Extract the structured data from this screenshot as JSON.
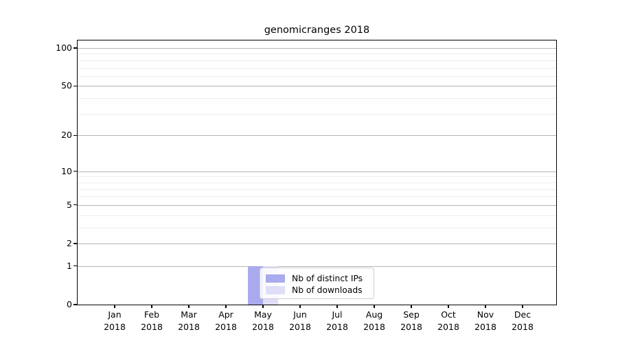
{
  "figure": {
    "title": "genomicranges 2018"
  },
  "chart_data": {
    "type": "bar",
    "title": "genomicranges 2018",
    "categories": [
      "Jan 2018",
      "Feb 2018",
      "Mar 2018",
      "Apr 2018",
      "May 2018",
      "Jun 2018",
      "Jul 2018",
      "Aug 2018",
      "Sep 2018",
      "Oct 2018",
      "Nov 2018",
      "Dec 2018"
    ],
    "series": [
      {
        "name": "Nb of distinct IPs",
        "color": "#aaaaee",
        "values": [
          0,
          0,
          0,
          0,
          1,
          0,
          0,
          0,
          0,
          0,
          0,
          0
        ]
      },
      {
        "name": "Nb of downloads",
        "color": "#dedef9",
        "values": [
          0,
          0,
          0,
          0,
          1,
          0,
          0,
          0,
          0,
          0,
          0,
          0
        ]
      }
    ],
    "yscale": "log1p",
    "ylim": [
      0,
      114
    ],
    "y_major_ticks": [
      0,
      1,
      2,
      5,
      10,
      20,
      50,
      100
    ],
    "y_minor_ticks": [
      3,
      4,
      6,
      7,
      8,
      9,
      30,
      40,
      60,
      70,
      80,
      90
    ],
    "grid": {
      "major_color": "#b4b4b4",
      "minor_color": "#ececec",
      "enabled": true
    },
    "legend": {
      "position": "lower center-left inside plot",
      "frame_color": "#cccccc"
    },
    "xlabel": "",
    "ylabel": ""
  }
}
